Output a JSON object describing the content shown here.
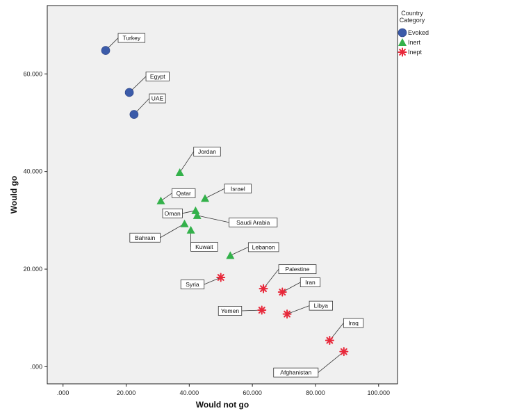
{
  "chart_data": {
    "type": "scatter",
    "xlabel": "Would not go",
    "ylabel": "Would go",
    "xlim": [
      -5,
      106
    ],
    "ylim": [
      -3.5,
      74
    ],
    "x_ticks": [
      0,
      20,
      40,
      60,
      80,
      100
    ],
    "y_ticks": [
      0,
      20,
      40,
      60
    ],
    "x_tick_labels": [
      ".000",
      "20.000",
      "40.000",
      "60.000",
      "80.000",
      "100.000"
    ],
    "y_tick_labels": [
      ".000",
      "20.000",
      "40.000",
      "60.000"
    ],
    "grid": false,
    "legend": {
      "title_lines": [
        "Country",
        "Category"
      ],
      "placement": "right",
      "entries": [
        {
          "name": "Evoked",
          "marker": "circle",
          "color": "#3B5BA9"
        },
        {
          "name": "Inert",
          "marker": "triangle",
          "color": "#33B14A"
        },
        {
          "name": "Inept",
          "marker": "star",
          "color": "#E8283A"
        }
      ]
    },
    "series": [
      {
        "name": "Evoked",
        "points": [
          {
            "label": "Turkey",
            "x": 13.5,
            "y": 64.8
          },
          {
            "label": "Egypt",
            "x": 21,
            "y": 56.2
          },
          {
            "label": "UAE",
            "x": 22.5,
            "y": 51.7
          }
        ]
      },
      {
        "name": "Inert",
        "points": [
          {
            "label": "Jordan",
            "x": 37,
            "y": 39.8
          },
          {
            "label": "Qatar",
            "x": 31,
            "y": 34
          },
          {
            "label": "Israel",
            "x": 45,
            "y": 34.5
          },
          {
            "label": "Oman",
            "x": 42,
            "y": 32
          },
          {
            "label": "Saudi Arabia",
            "x": 42.5,
            "y": 31
          },
          {
            "label": "Bahrain",
            "x": 38.5,
            "y": 29.3
          },
          {
            "label": "Kuwait",
            "x": 40.5,
            "y": 28
          },
          {
            "label": "Lebanon",
            "x": 53,
            "y": 22.8
          }
        ]
      },
      {
        "name": "Inept",
        "points": [
          {
            "label": "Syria",
            "x": 50,
            "y": 18.3
          },
          {
            "label": "Palestine",
            "x": 63.5,
            "y": 16
          },
          {
            "label": "Iran",
            "x": 69.5,
            "y": 15.3
          },
          {
            "label": "Yemen",
            "x": 63,
            "y": 11.6
          },
          {
            "label": "Libya",
            "x": 71,
            "y": 10.8
          },
          {
            "label": "Iraq",
            "x": 84.5,
            "y": 5.4
          },
          {
            "label": "Afghanistan",
            "x": 89,
            "y": 3.1
          }
        ]
      }
    ]
  }
}
